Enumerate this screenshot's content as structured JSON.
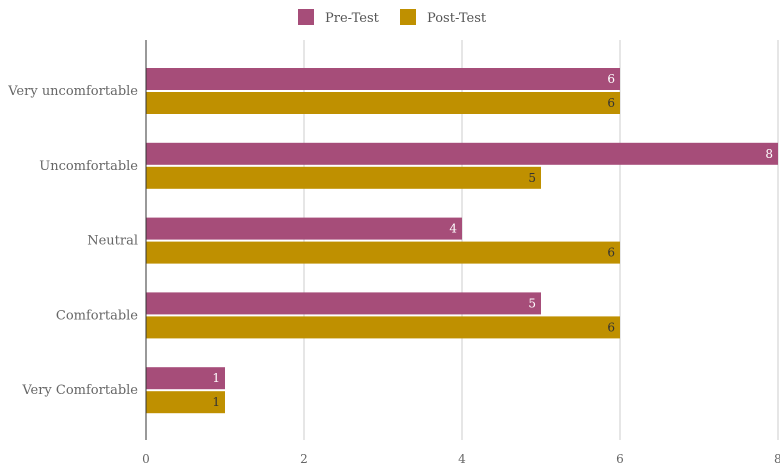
{
  "chart_data": {
    "type": "bar",
    "orientation": "horizontal",
    "title": "",
    "xlabel": "",
    "ylabel": "",
    "categories": [
      "Very uncomfortable",
      "Uncomfortable",
      "Neutral",
      "Comfortable",
      "Very Comfortable"
    ],
    "series": [
      {
        "name": "Pre-Test",
        "color": "#a64d79",
        "label_color": "#ffffff",
        "values": [
          6,
          8,
          4,
          5,
          1
        ]
      },
      {
        "name": "Post-Test",
        "color": "#bf9000",
        "label_color": "#333333",
        "values": [
          6,
          5,
          6,
          6,
          1
        ]
      }
    ],
    "xlim": [
      0,
      8
    ],
    "xticks": [
      0,
      2,
      4,
      6,
      8
    ],
    "grid": true,
    "legend_position": "top-center",
    "data_labels": true
  }
}
